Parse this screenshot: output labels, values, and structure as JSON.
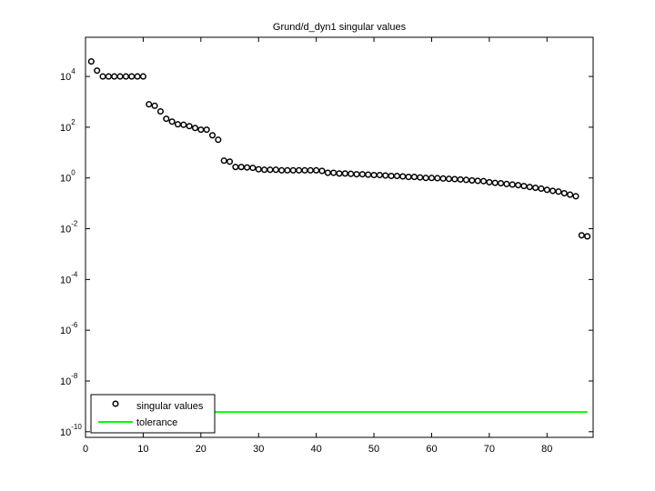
{
  "chart_data": {
    "type": "scatter",
    "title": "Grund/d_dyn1 singular values",
    "yscale": "log",
    "xlim": [
      0,
      88
    ],
    "xticks": [
      0,
      10,
      20,
      30,
      40,
      50,
      60,
      70,
      80
    ],
    "ylim": [
      6e-11,
      350000
    ],
    "yticks": [
      {
        "value": 1e-10,
        "label": "10^-10"
      },
      {
        "value": 1e-08,
        "label": "10^-8"
      },
      {
        "value": 1e-06,
        "label": "10^-6"
      },
      {
        "value": 0.0001,
        "label": "10^-4"
      },
      {
        "value": 0.01,
        "label": "10^-2"
      },
      {
        "value": 1,
        "label": "10^0"
      },
      {
        "value": 100,
        "label": "10^2"
      },
      {
        "value": 10000,
        "label": "10^4"
      }
    ],
    "legend": "lower left",
    "series": [
      {
        "name": "singular values",
        "color": "#000000",
        "marker": "circle",
        "x": [
          1,
          2,
          3,
          4,
          5,
          6,
          7,
          8,
          9,
          10,
          11,
          12,
          13,
          14,
          15,
          16,
          17,
          18,
          19,
          20,
          21,
          22,
          23,
          24,
          25,
          26,
          27,
          28,
          29,
          30,
          31,
          32,
          33,
          34,
          35,
          36,
          37,
          38,
          39,
          40,
          41,
          42,
          43,
          44,
          45,
          46,
          47,
          48,
          49,
          50,
          51,
          52,
          53,
          54,
          55,
          56,
          57,
          58,
          59,
          60,
          61,
          62,
          63,
          64,
          65,
          66,
          67,
          68,
          69,
          70,
          71,
          72,
          73,
          74,
          75,
          76,
          77,
          78,
          79,
          80,
          81,
          82,
          83,
          84,
          85,
          86,
          87
        ],
        "values": [
          39000,
          17000,
          10000,
          10000,
          10000,
          10000,
          10000,
          10000,
          10000,
          10000,
          800,
          700,
          420,
          215,
          166,
          130,
          125,
          110,
          93,
          80,
          80,
          48,
          32,
          4.8,
          4.4,
          2.7,
          2.7,
          2.6,
          2.5,
          2.2,
          2.1,
          2.1,
          2.1,
          2.0,
          2.0,
          2.0,
          2.0,
          2.0,
          2.0,
          2.0,
          1.9,
          1.6,
          1.6,
          1.5,
          1.5,
          1.45,
          1.4,
          1.4,
          1.35,
          1.3,
          1.3,
          1.25,
          1.2,
          1.2,
          1.15,
          1.1,
          1.1,
          1.05,
          1.0,
          1.0,
          0.98,
          0.95,
          0.92,
          0.9,
          0.87,
          0.84,
          0.8,
          0.77,
          0.75,
          0.68,
          0.64,
          0.62,
          0.58,
          0.55,
          0.52,
          0.48,
          0.44,
          0.41,
          0.38,
          0.34,
          0.31,
          0.29,
          0.25,
          0.22,
          0.19,
          0.0055,
          0.005
        ]
      },
      {
        "name": "tolerance",
        "color": "#00ff00",
        "marker": "line",
        "x": [
          1,
          87
        ],
        "values": [
          6e-10,
          6e-10
        ]
      }
    ]
  }
}
